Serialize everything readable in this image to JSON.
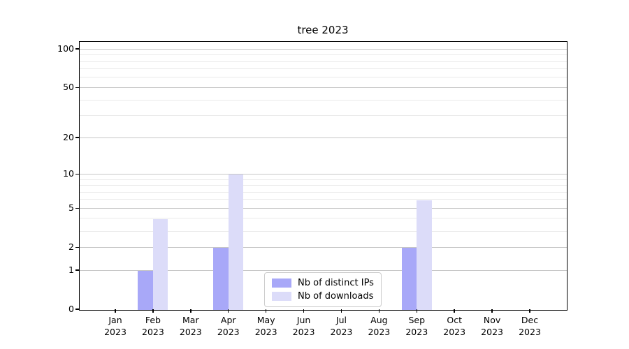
{
  "title": "tree 2023",
  "chart_data": {
    "type": "bar",
    "title": "tree 2023",
    "categories": [
      "Jan",
      "Feb",
      "Mar",
      "Apr",
      "May",
      "Jun",
      "Jul",
      "Aug",
      "Sep",
      "Oct",
      "Nov",
      "Dec"
    ],
    "category_year": "2023",
    "series": [
      {
        "name": "Nb of distinct IPs",
        "color": "#a8a8f8",
        "values": [
          0,
          1,
          0,
          2,
          0,
          0,
          0,
          0,
          2,
          0,
          0,
          0
        ]
      },
      {
        "name": "Nb of downloads",
        "color": "#dcdcf9",
        "values": [
          0,
          4,
          0,
          10,
          0,
          0,
          0,
          0,
          6,
          0,
          0,
          0
        ]
      }
    ],
    "xlabel": "",
    "ylabel": "",
    "y_axis": {
      "scale": "log1p",
      "major_ticks": [
        0,
        1,
        2,
        5,
        10,
        20,
        50,
        100
      ],
      "minor_ticks": [
        3,
        4,
        6,
        7,
        8,
        9,
        30,
        40,
        60,
        70,
        80,
        90
      ],
      "ylim": [
        0,
        113
      ]
    },
    "grid": true,
    "legend_position": "lower center"
  },
  "colors": {
    "background": "#ffffff",
    "axis": "#000000",
    "text": "#000000",
    "major_grid": "#c6c6c6",
    "minor_grid": "#eaeaea",
    "legend_border": "#cccccc"
  }
}
